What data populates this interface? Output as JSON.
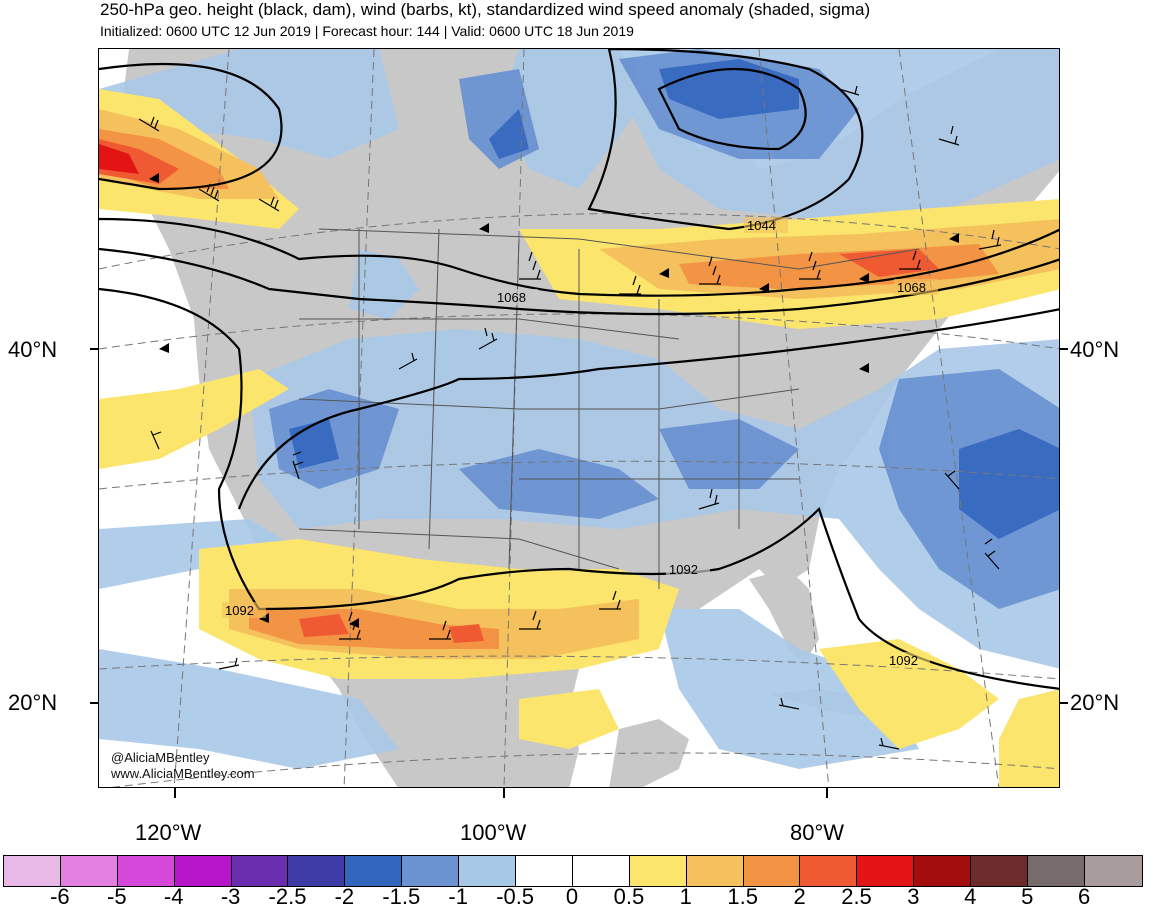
{
  "title": "250-hPa geo. height (black, dam), wind (barbs, kt), standardized wind speed anomaly (shaded, sigma)",
  "subtitle": "Initialized: 0600 UTC 12 Jun 2019 | Forecast hour: 144 | Valid: 0600 UTC 18 Jun 2019",
  "credit": {
    "handle": "@AliciaMBentley",
    "website": "www.AliciaMBentley.com"
  },
  "latitude_labels": [
    "40°N",
    "20°N"
  ],
  "longitude_labels": [
    "120°W",
    "100°W",
    "80°W"
  ],
  "contour_labels": [
    "1044",
    "1068",
    "1068",
    "1092",
    "1092",
    "1092"
  ],
  "colorbar": {
    "labels": [
      "-6",
      "-5",
      "-4",
      "-3",
      "-2.5",
      "-2",
      "-1.5",
      "-1",
      "-0.5",
      "0",
      "0.5",
      "1",
      "1.5",
      "2",
      "2.5",
      "3",
      "4",
      "5",
      "6"
    ],
    "colors": [
      "#e8b8e6",
      "#e27fe0",
      "#d548d9",
      "#b615ca",
      "#6a2eaf",
      "#3f3ca7",
      "#3366bf",
      "#6b93d2",
      "#a8c8e8",
      "#ffffff",
      "#ffffff",
      "#fbe56c",
      "#f4c15c",
      "#f39444",
      "#ef5a33",
      "#e31414",
      "#a40d0d",
      "#6e2b2b",
      "#776b6b",
      "#a89c9c"
    ]
  },
  "colors": {
    "land": "#c8c8c8",
    "ocean": "#ffffff"
  }
}
